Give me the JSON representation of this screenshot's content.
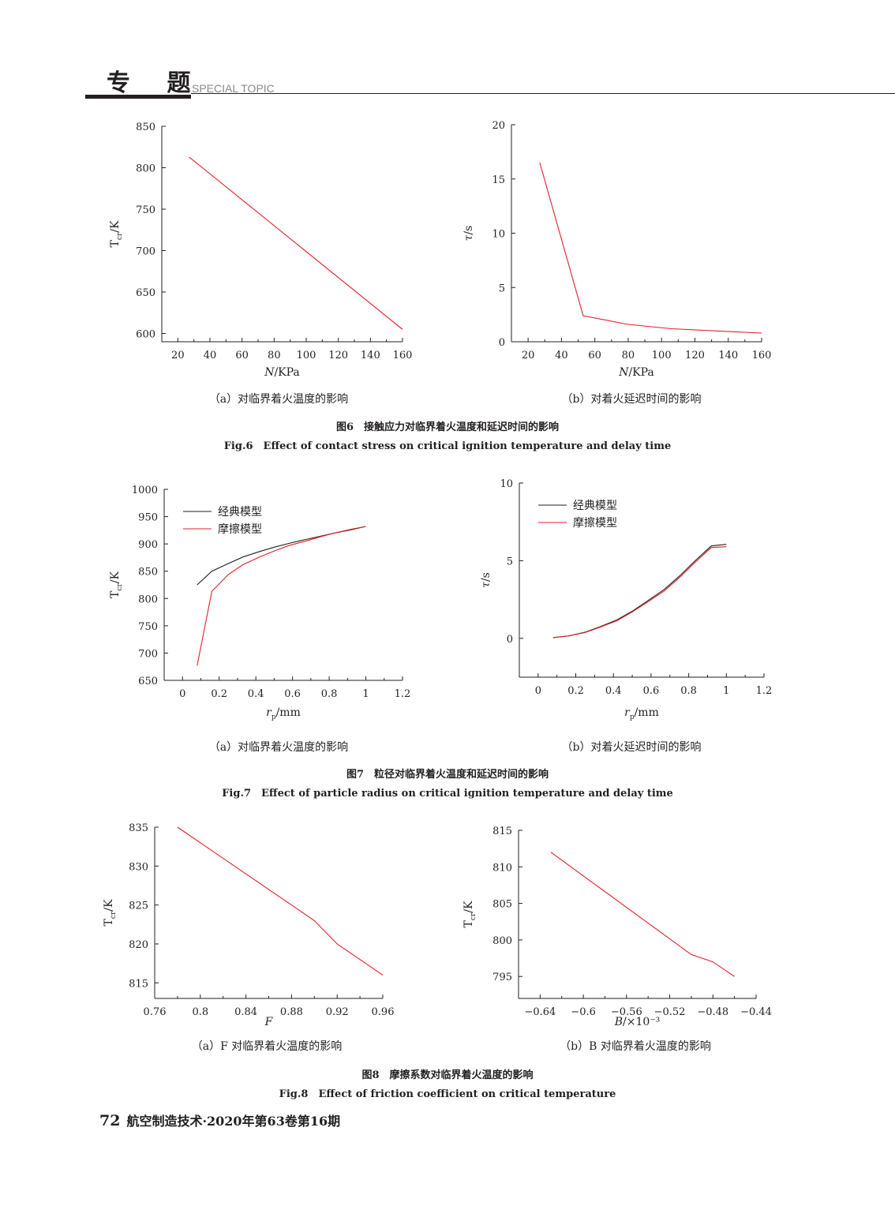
{
  "header": {
    "title": "专 题",
    "subtitle": "SPECIAL TOPIC"
  },
  "figures": [
    {
      "caption_cn": "图6　接触应力对临界着火温度和延迟时间的影响",
      "caption_en": "Fig.6　Effect of contact stress on critical ignition temperature and delay time",
      "subcaptions": [
        "（a）对临界着火温度的影响",
        "（b）对着火延迟时间的影响"
      ]
    },
    {
      "caption_cn": "图7　粒径对临界着火温度和延迟时间的影响",
      "caption_en": "Fig.7　Effect of particle radius on critical ignition temperature and delay time",
      "subcaptions": [
        "（a）对临界着火温度的影响",
        "（b）对着火延迟时间的影响"
      ]
    },
    {
      "caption_cn": "图8　摩擦系数对临界着火温度的影响",
      "caption_en": "Fig.8　Effect of friction coefficient on critical temperature",
      "subcaptions": [
        "（a）F 对临界着火温度的影响",
        "（b）B 对临界着火温度的影响"
      ]
    }
  ],
  "footer": {
    "page": "72",
    "journal": "航空制造技术·2020年第63卷第16期"
  },
  "colors": {
    "classic": "#231f20",
    "friction": "#e02027",
    "axis": "#231f20"
  },
  "chart_data": [
    {
      "id": "fig6a",
      "type": "line",
      "xlabel": "N/KPa",
      "ylabel": "Tcr/K",
      "xlim": [
        10,
        160
      ],
      "ylim": [
        590,
        850
      ],
      "xticks": [
        20,
        40,
        60,
        80,
        100,
        120,
        140,
        160
      ],
      "yticks": [
        600,
        650,
        700,
        750,
        800,
        850
      ],
      "series": [
        {
          "color": "#e02027",
          "x": [
            27,
            160
          ],
          "y": [
            813,
            605
          ]
        }
      ]
    },
    {
      "id": "fig6b",
      "type": "line",
      "xlabel": "N/KPa",
      "ylabel": "τ/s",
      "xlim": [
        10,
        160
      ],
      "ylim": [
        0,
        20
      ],
      "xticks": [
        20,
        40,
        60,
        80,
        100,
        120,
        140,
        160
      ],
      "yticks": [
        0,
        5,
        10,
        15,
        20
      ],
      "series": [
        {
          "color": "#e02027",
          "x": [
            27,
            53,
            80,
            106,
            133,
            160
          ],
          "y": [
            16.5,
            2.4,
            1.6,
            1.2,
            1.0,
            0.8
          ]
        }
      ]
    },
    {
      "id": "fig7a",
      "type": "line",
      "xlabel": "rp/mm",
      "ylabel": "Tcr/K",
      "xlim": [
        -0.1,
        1.2
      ],
      "ylim": [
        650,
        1000
      ],
      "xticks": [
        0,
        0.2,
        0.4,
        0.6,
        0.8,
        1.0,
        1.2
      ],
      "yticks": [
        650,
        700,
        750,
        800,
        850,
        900,
        950,
        1000
      ],
      "legend_position": "top-left",
      "series": [
        {
          "name": "经典模型",
          "color": "#231f20",
          "x": [
            0.08,
            0.16,
            0.25,
            0.33,
            0.42,
            0.5,
            0.58,
            0.67,
            0.75,
            0.83,
            0.92,
            1.0
          ],
          "y": [
            825,
            850,
            864,
            876,
            886,
            894,
            901,
            908,
            914,
            920,
            926,
            932
          ]
        },
        {
          "name": "摩擦模型",
          "color": "#e02027",
          "x": [
            0.08,
            0.16,
            0.25,
            0.33,
            0.42,
            0.5,
            0.58,
            0.67,
            0.75,
            0.83,
            0.92,
            1.0
          ],
          "y": [
            677,
            813,
            844,
            862,
            876,
            887,
            897,
            905,
            913,
            920,
            927,
            932
          ]
        }
      ]
    },
    {
      "id": "fig7b",
      "type": "line",
      "xlabel": "rp/mm",
      "ylabel": "τ/s",
      "xlim": [
        -0.1,
        1.2
      ],
      "ylim": [
        -2.5,
        10
      ],
      "xticks": [
        0,
        0.2,
        0.4,
        0.6,
        0.8,
        1.0,
        1.2
      ],
      "yticks": [
        0,
        5,
        10
      ],
      "legend_position": "top-left",
      "series": [
        {
          "name": "经典模型",
          "color": "#231f20",
          "x": [
            0.08,
            0.16,
            0.25,
            0.33,
            0.42,
            0.5,
            0.58,
            0.67,
            0.75,
            0.83,
            0.92,
            1.0
          ],
          "y": [
            0.05,
            0.15,
            0.4,
            0.75,
            1.2,
            1.75,
            2.4,
            3.15,
            4.0,
            4.95,
            5.95,
            6.05
          ]
        },
        {
          "name": "摩擦模型",
          "color": "#e02027",
          "x": [
            0.08,
            0.16,
            0.25,
            0.33,
            0.42,
            0.5,
            0.58,
            0.67,
            0.75,
            0.83,
            0.92,
            1.0
          ],
          "y": [
            0.05,
            0.15,
            0.38,
            0.72,
            1.15,
            1.7,
            2.33,
            3.05,
            3.9,
            4.85,
            5.85,
            5.9
          ]
        }
      ]
    },
    {
      "id": "fig8a",
      "type": "line",
      "xlabel": "F",
      "ylabel": "Tcr/K",
      "xlim": [
        0.76,
        0.96
      ],
      "ylim": [
        813,
        835
      ],
      "xticks": [
        0.76,
        0.8,
        0.84,
        0.88,
        0.92,
        0.96
      ],
      "yticks": [
        815,
        820,
        825,
        830,
        835
      ],
      "series": [
        {
          "color": "#e02027",
          "x": [
            0.78,
            0.9,
            0.92,
            0.96
          ],
          "y": [
            835,
            823,
            820,
            816
          ]
        }
      ]
    },
    {
      "id": "fig8b",
      "type": "line",
      "xlabel": "B/×10⁻³",
      "ylabel": "Tcr/K",
      "xlim": [
        -0.66,
        -0.44
      ],
      "ylim": [
        792,
        815
      ],
      "xticks": [
        -0.64,
        -0.6,
        -0.56,
        -0.52,
        -0.48,
        -0.44
      ],
      "yticks": [
        795,
        800,
        805,
        810,
        815
      ],
      "series": [
        {
          "color": "#e02027",
          "x": [
            -0.63,
            -0.5,
            -0.48,
            -0.46
          ],
          "y": [
            812,
            798,
            797,
            795
          ]
        }
      ]
    }
  ]
}
